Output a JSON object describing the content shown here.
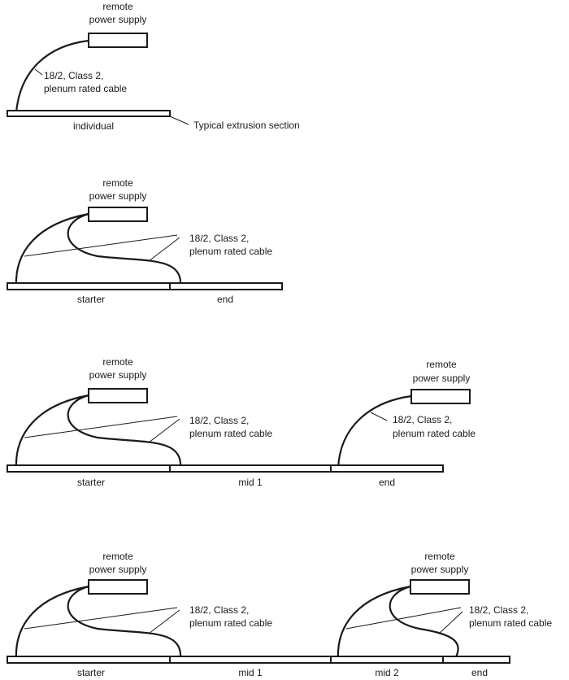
{
  "labels": {
    "remote_power_supply_line1": "remote",
    "remote_power_supply_line2": "power supply",
    "cable_line1": "18/2, Class 2,",
    "cable_line2": "plenum rated cable",
    "typical_extrusion_section": "Typical extrusion section"
  },
  "sections": {
    "individual": "individual",
    "starter": "starter",
    "end": "end",
    "mid1": "mid 1",
    "mid2": "mid 2"
  },
  "colors": {
    "line": "#1a1a1a",
    "background": "#ffffff"
  }
}
